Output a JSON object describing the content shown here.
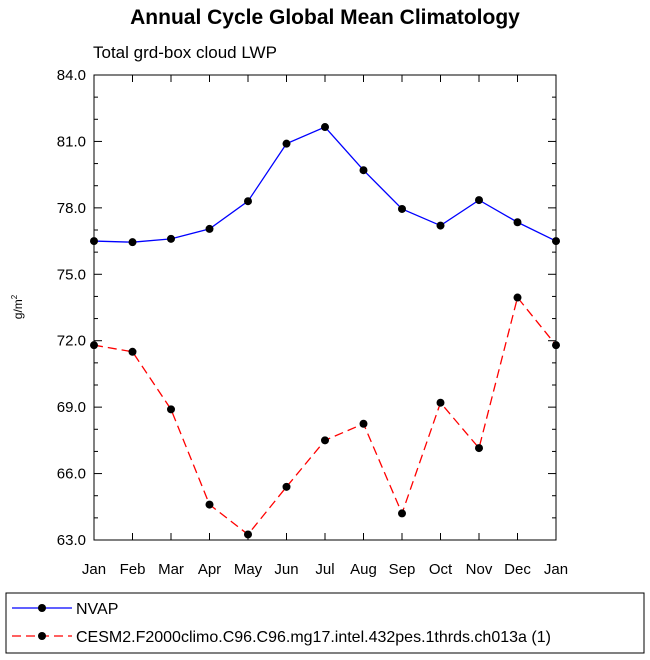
{
  "chart_data": {
    "type": "line",
    "title": "Annual Cycle Global Mean Climatology",
    "subtitle": "Total grd-box cloud LWP",
    "ylabel": "g/m",
    "ylabel_sup": "2",
    "xlabel": "",
    "categories": [
      "Jan",
      "Feb",
      "Mar",
      "Apr",
      "May",
      "Jun",
      "Jul",
      "Aug",
      "Sep",
      "Oct",
      "Nov",
      "Dec",
      "Jan"
    ],
    "yticks": [
      "63.0",
      "66.0",
      "69.0",
      "72.0",
      "75.0",
      "78.0",
      "81.0",
      "84.0"
    ],
    "ylim": [
      63,
      84
    ],
    "grid": false,
    "legend_position": "bottom",
    "series": [
      {
        "name": "NVAP",
        "color": "#0000ff",
        "style": "solid",
        "values": [
          76.5,
          76.45,
          76.6,
          77.05,
          78.3,
          80.9,
          81.65,
          79.7,
          77.95,
          77.2,
          78.35,
          77.35,
          76.5
        ]
      },
      {
        "name": "CESM2.F2000climo.C96.C96.mg17.intel.432pes.1thrds.ch013a (1)",
        "color": "#ff0000",
        "style": "dashed",
        "values": [
          71.8,
          71.5,
          68.9,
          64.6,
          63.25,
          65.4,
          67.5,
          68.25,
          64.2,
          69.2,
          67.15,
          73.95,
          71.8
        ]
      }
    ]
  }
}
